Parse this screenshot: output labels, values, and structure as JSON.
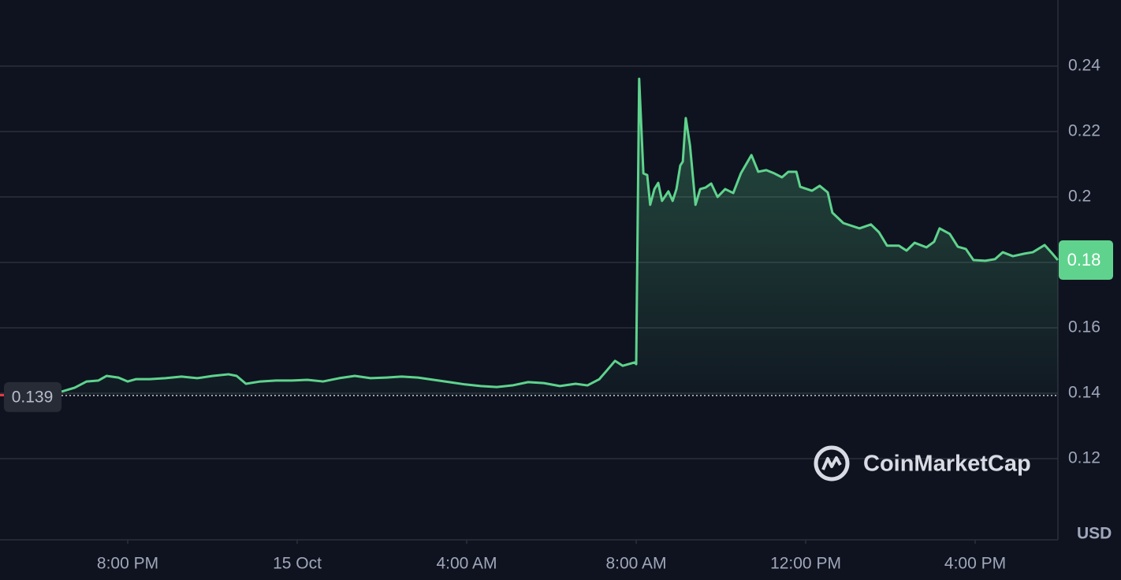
{
  "chart_data": {
    "type": "line",
    "color": "#5fd38d",
    "grid": true,
    "unit": "USD",
    "watermark": "CoinMarketCap",
    "x": [
      -5.56,
      -5.25,
      -4.97,
      -4.69,
      -4.5,
      -4.22,
      -4.0,
      -3.81,
      -3.48,
      -3.11,
      -2.73,
      -2.36,
      -1.99,
      -1.62,
      -1.43,
      -1.21,
      -0.87,
      -0.5,
      -0.13,
      0.24,
      0.61,
      0.99,
      1.36,
      1.73,
      2.1,
      2.47,
      2.85,
      3.22,
      3.59,
      3.96,
      4.33,
      4.71,
      5.08,
      5.45,
      5.82,
      6.2,
      6.57,
      6.85,
      7.13,
      7.31,
      7.5,
      7.68,
      7.96,
      8.0,
      8.07,
      8.17,
      8.26,
      8.33,
      8.43,
      8.52,
      8.61,
      8.76,
      8.86,
      8.95,
      9.04,
      9.1,
      9.17,
      9.27,
      9.4,
      9.51,
      9.64,
      9.77,
      9.92,
      10.1,
      10.29,
      10.47,
      10.72,
      10.88,
      11.07,
      11.26,
      11.44,
      11.59,
      11.78,
      11.87,
      12.15,
      12.33,
      12.52,
      12.63,
      12.89,
      13.27,
      13.54,
      13.73,
      13.92,
      14.2,
      14.38,
      14.57,
      14.85,
      15.03,
      15.16,
      15.4,
      15.59,
      15.78,
      15.96,
      16.24,
      16.47,
      16.65,
      16.89,
      17.17,
      17.36,
      17.64,
      17.82,
      17.95
    ],
    "values": [
      0.1405,
      0.1417,
      0.1436,
      0.1439,
      0.1453,
      0.1448,
      0.1436,
      0.1443,
      0.1443,
      0.1446,
      0.1451,
      0.1446,
      0.1453,
      0.1458,
      0.1453,
      0.1429,
      0.1436,
      0.1439,
      0.1439,
      0.1441,
      0.1436,
      0.1446,
      0.1453,
      0.1446,
      0.1448,
      0.1451,
      0.1448,
      0.1441,
      0.1434,
      0.1427,
      0.1422,
      0.1419,
      0.1424,
      0.1434,
      0.1431,
      0.1422,
      0.1429,
      0.1424,
      0.1443,
      0.147,
      0.1499,
      0.1484,
      0.1494,
      0.1489,
      0.2361,
      0.2072,
      0.2067,
      0.1976,
      0.2024,
      0.2043,
      0.1988,
      0.2017,
      0.1988,
      0.2024,
      0.2096,
      0.2108,
      0.2241,
      0.2157,
      0.1976,
      0.2024,
      0.2029,
      0.2041,
      0.2,
      0.2024,
      0.2012,
      0.2072,
      0.2128,
      0.2077,
      0.2082,
      0.2072,
      0.206,
      0.2077,
      0.2077,
      0.2031,
      0.2019,
      0.2034,
      0.2014,
      0.1952,
      0.192,
      0.1904,
      0.1916,
      0.1892,
      0.1851,
      0.1851,
      0.1836,
      0.186,
      0.1846,
      0.1863,
      0.1904,
      0.1887,
      0.1848,
      0.1841,
      0.1807,
      0.1805,
      0.181,
      0.1831,
      0.1819,
      0.1827,
      0.1831,
      0.1853,
      0.1827,
      0.1807
    ],
    "xlim": [
      -7.014,
      17.953
    ],
    "ylim": [
      0.0952,
      0.2602
    ],
    "yticks": [
      0.12,
      0.14,
      0.16,
      0.18,
      0.2,
      0.22,
      0.24
    ],
    "xticks": [
      {
        "value": -4,
        "label": "8:00 PM"
      },
      {
        "value": 0,
        "label": "15 Oct"
      },
      {
        "value": 4,
        "label": "4:00 AM"
      },
      {
        "value": 8,
        "label": "8:00 AM"
      },
      {
        "value": 12,
        "label": "12:00 PM"
      },
      {
        "value": 16,
        "label": "4:00 PM"
      }
    ],
    "open_line": {
      "value": 0.1393,
      "label": "0.139"
    },
    "price_tag": {
      "value": 0.1807,
      "label": "0.18"
    }
  }
}
